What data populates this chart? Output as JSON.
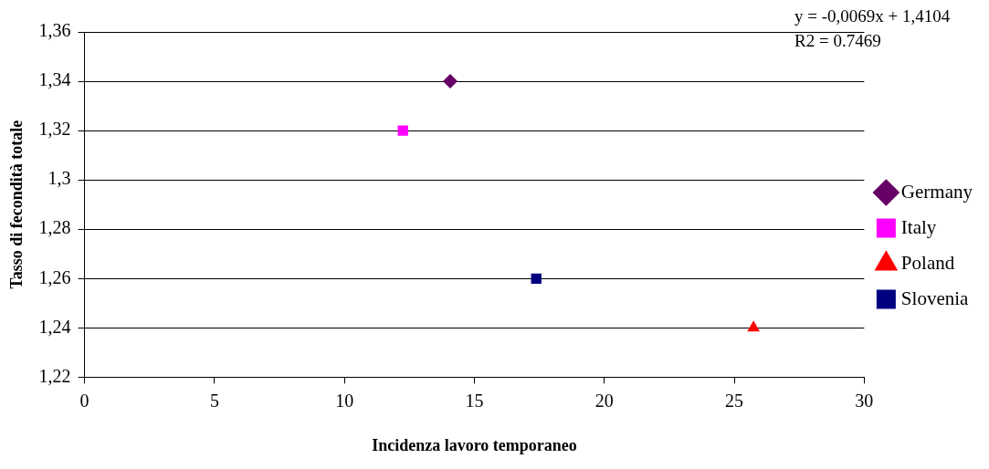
{
  "chart_data": {
    "type": "scatter",
    "xlabel": "Incidenza lavoro temporaneo",
    "ylabel": "Tasso di fecondità totale",
    "series": [
      {
        "name": "Germany",
        "color": "#660066",
        "marker": "diamond",
        "x": [
          14.07
        ],
        "values": [
          1.34
        ]
      },
      {
        "name": "Italy",
        "color": "#ff00ff",
        "marker": "square",
        "x": [
          12.25
        ],
        "values": [
          1.32
        ]
      },
      {
        "name": "Poland",
        "color": "#ff0000",
        "marker": "triangle",
        "x": [
          25.74
        ],
        "values": [
          1.24
        ]
      },
      {
        "name": "Slovenia",
        "color": "#000080",
        "marker": "square",
        "x": [
          17.38
        ],
        "values": [
          1.26
        ]
      }
    ],
    "xlim": [
      0,
      30
    ],
    "xticks": [
      0,
      5,
      10,
      15,
      20,
      25,
      30
    ],
    "ylim": [
      1.22,
      1.36
    ],
    "yticks": [
      {
        "value": 1.22,
        "label": "1,22"
      },
      {
        "value": 1.24,
        "label": "1,24"
      },
      {
        "value": 1.26,
        "label": "1,26"
      },
      {
        "value": 1.28,
        "label": "1,28"
      },
      {
        "value": 1.3,
        "label": "1,3"
      },
      {
        "value": 1.32,
        "label": "1,32"
      },
      {
        "value": 1.34,
        "label": "1,34"
      },
      {
        "value": 1.36,
        "label": "1,36"
      }
    ],
    "grid": "y",
    "legend": "right",
    "annotations": [
      "y = -0,0069x + 1,4104",
      "R2 = 0.7469"
    ]
  }
}
